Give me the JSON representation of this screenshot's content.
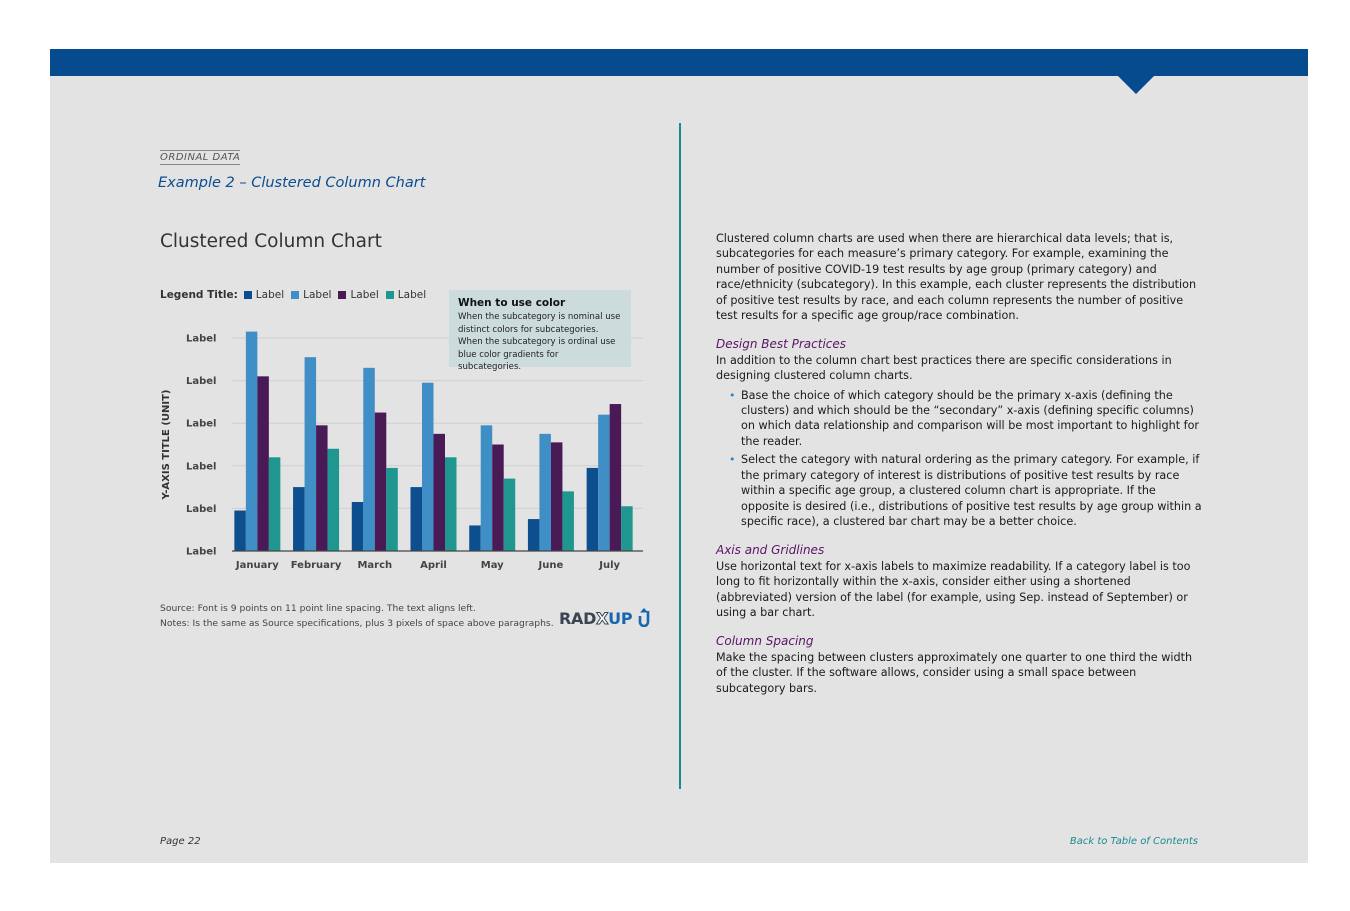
{
  "header": {
    "eyebrow": "ORDINAL DATA",
    "example_title": "Example 2 – Clustered Column Chart"
  },
  "left": {
    "chart_title": "Clustered Column Chart",
    "legend": {
      "title": "Legend Title:",
      "items": [
        {
          "label": "Label",
          "color": "#0d4f8e"
        },
        {
          "label": "Label",
          "color": "#3f8fc6"
        },
        {
          "label": "Label",
          "color": "#4a1a57"
        },
        {
          "label": "Label",
          "color": "#1f968f"
        }
      ]
    },
    "callout": {
      "heading": "When to use color",
      "body": "When the subcategory is nominal use distinct colors for subcategories. When the subcategory is ordinal use blue color gradients for subcategories."
    },
    "source_line": "Source: Font is 9 points on 11 point line spacing. The text aligns left.",
    "notes_line": "Notes: Is the same as Source specifications, plus 3 pixels of space above paragraphs.",
    "logo": {
      "part1": "RAD",
      "part2": "X",
      "part3": "UP",
      "icon": "upload-arrow-icon"
    }
  },
  "chart_data": {
    "type": "bar",
    "categories": [
      "January",
      "February",
      "March",
      "April",
      "May",
      "June",
      "July"
    ],
    "series": [
      {
        "values": [
          19,
          30,
          23,
          30,
          12,
          15,
          39
        ],
        "color": "#0d4f8e"
      },
      {
        "values": [
          103,
          91,
          86,
          79,
          59,
          55,
          64
        ],
        "color": "#3f8fc6"
      },
      {
        "values": [
          82,
          59,
          65,
          55,
          50,
          51,
          69
        ],
        "color": "#4a1a57"
      },
      {
        "values": [
          44,
          48,
          39,
          44,
          34,
          28,
          21
        ],
        "color": "#1f968f"
      }
    ],
    "ylabel": "Y-AXIS TITLE (UNIT)",
    "y_tick_labels": [
      "Label",
      "Label",
      "Label",
      "Label",
      "Label",
      "Label"
    ],
    "ylim": [
      0,
      100
    ],
    "grid": true
  },
  "right": {
    "intro": "Clustered column charts are used when there are hierarchical data levels; that is, subcategories for each measure’s primary category. For example, examining the number of positive COVID-19 test results by age group (primary category) and race/ethnicity (subcategory). In this example, each cluster represents the distribution of positive test results by race, and each column represents the number of positive test results for a specific age group/race combination.",
    "section1": {
      "heading": "Design Best Practices",
      "body": "In addition to the column chart best practices there are specific considerations in designing clustered column charts.",
      "bullets": [
        "Base the choice of which category should be the primary x-axis (defining the clusters) and which should be the “secondary” x-axis (defining specific columns) on which data relationship and comparison will be most important to highlight for the reader.",
        "Select the category with natural ordering as the primary category. For example, if the primary category of interest is distributions of positive test results by race within a specific age group, a clustered column chart is appropriate. If the opposite is desired (i.e., distributions of positive test results by age group within a specific race), a clustered bar chart may be a better choice."
      ]
    },
    "section2": {
      "heading": "Axis and Gridlines",
      "body": "Use horizontal text for x-axis labels to maximize readability. If a category label is too long to fit horizontally within the x-axis, consider either using a shortened (abbreviated) version of the label (for example, using Sep. instead of September) or using a bar chart."
    },
    "section3": {
      "heading": "Column Spacing",
      "body": "Make the spacing between clusters approximately one quarter to one third the width of the cluster. If the software allows, consider using a small space between subcategory bars."
    }
  },
  "footer": {
    "page": "Page 22",
    "toc_link": "Back to Table of Contents"
  }
}
